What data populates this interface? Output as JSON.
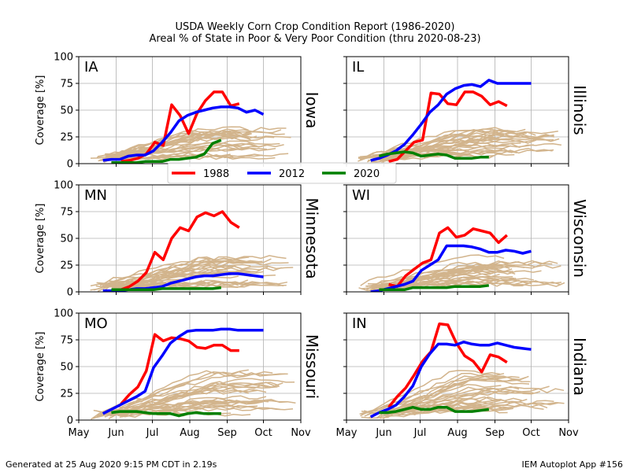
{
  "header": {
    "title_line1": "USDA Weekly Corn Crop Condition Report (1986-2020)",
    "title_line2": "Areal % of State in Poor & Very Poor Condition (thru 2020-08-23)"
  },
  "footer": {
    "left": "Generated at 25 Aug 2020 9:15 PM CDT in 2.19s",
    "right": "IEM Autoplot App #156"
  },
  "colors": {
    "1988": "#ff0000",
    "2012": "#0000ff",
    "2020": "#008000",
    "other_years": "#d2b48c",
    "grid": "#b0b0b0"
  },
  "chart_data": {
    "type": "line",
    "x_ticks": [
      "May",
      "Jun",
      "Jul",
      "Aug",
      "Sep",
      "Oct",
      "Nov"
    ],
    "xlim": [
      "May 1",
      "Nov 1"
    ],
    "y_ticks": [
      "0",
      "25",
      "50",
      "75",
      "100"
    ],
    "ylim": [
      0,
      100
    ],
    "ylabel": "Coverage [%]",
    "grid": true,
    "legend": {
      "placement": "center",
      "entries": [
        "1988",
        "2012",
        "2020"
      ]
    },
    "panels": [
      {
        "abbr": "IA",
        "state": "Iowa",
        "series": [
          {
            "name": "1988",
            "dates": [
              "2024-06-05",
              "2024-06-12",
              "2024-06-19",
              "2024-06-26",
              "2024-07-03",
              "2024-07-10",
              "2024-07-17",
              "2024-07-24",
              "2024-07-31",
              "2024-08-07",
              "2024-08-14",
              "2024-08-21",
              "2024-08-28",
              "2024-09-04",
              "2024-09-11"
            ],
            "values": [
              2,
              3,
              5,
              9,
              20,
              17,
              55,
              45,
              28,
              47,
              59,
              67,
              67,
              54,
              56
            ]
          },
          {
            "name": "2012",
            "dates": [
              "2024-05-21",
              "2024-05-28",
              "2024-06-04",
              "2024-06-11",
              "2024-06-18",
              "2024-06-25",
              "2024-07-02",
              "2024-07-09",
              "2024-07-16",
              "2024-07-23",
              "2024-07-30",
              "2024-08-06",
              "2024-08-13",
              "2024-08-20",
              "2024-08-27",
              "2024-09-03",
              "2024-09-10",
              "2024-09-17",
              "2024-09-24",
              "2024-10-01"
            ],
            "values": [
              3,
              4,
              4,
              7,
              8,
              8,
              12,
              20,
              29,
              40,
              45,
              48,
              50,
              52,
              53,
              53,
              52,
              48,
              50,
              46
            ]
          },
          {
            "name": "2020",
            "dates": [
              "2024-05-28",
              "2024-06-04",
              "2024-06-11",
              "2024-06-18",
              "2024-06-25",
              "2024-07-02",
              "2024-07-09",
              "2024-07-16",
              "2024-07-23",
              "2024-07-30",
              "2024-08-06",
              "2024-08-13",
              "2024-08-20",
              "2024-08-27"
            ],
            "values": [
              1,
              1,
              1,
              1,
              2,
              2,
              2,
              4,
              4,
              5,
              6,
              9,
              19,
              22
            ]
          }
        ]
      },
      {
        "abbr": "IL",
        "state": "Illinois",
        "series": [
          {
            "name": "1988",
            "dates": [
              "2024-06-05",
              "2024-06-12",
              "2024-06-19",
              "2024-06-26",
              "2024-07-03",
              "2024-07-10",
              "2024-07-17",
              "2024-07-24",
              "2024-07-31",
              "2024-08-07",
              "2024-08-14",
              "2024-08-21",
              "2024-08-28",
              "2024-09-04",
              "2024-09-11"
            ],
            "values": [
              2,
              4,
              12,
              20,
              22,
              66,
              65,
              56,
              55,
              67,
              67,
              63,
              55,
              58,
              54
            ]
          },
          {
            "name": "2012",
            "dates": [
              "2024-05-21",
              "2024-05-28",
              "2024-06-04",
              "2024-06-11",
              "2024-06-18",
              "2024-06-25",
              "2024-07-02",
              "2024-07-09",
              "2024-07-16",
              "2024-07-23",
              "2024-07-30",
              "2024-08-06",
              "2024-08-13",
              "2024-08-20",
              "2024-08-27",
              "2024-09-03",
              "2024-09-10",
              "2024-09-17",
              "2024-09-24",
              "2024-10-01"
            ],
            "values": [
              3,
              5,
              8,
              12,
              18,
              27,
              37,
              48,
              55,
              65,
              70,
              73,
              74,
              72,
              78,
              75,
              75,
              75,
              75,
              75
            ]
          },
          {
            "name": "2020",
            "dates": [
              "2024-05-28",
              "2024-06-04",
              "2024-06-11",
              "2024-06-18",
              "2024-06-25",
              "2024-07-02",
              "2024-07-09",
              "2024-07-16",
              "2024-07-23",
              "2024-07-30",
              "2024-08-06",
              "2024-08-13",
              "2024-08-20",
              "2024-08-27"
            ],
            "values": [
              7,
              9,
              10,
              11,
              10,
              7,
              8,
              9,
              8,
              5,
              5,
              5,
              6,
              6
            ]
          }
        ]
      },
      {
        "abbr": "MN",
        "state": "Minnesota",
        "series": [
          {
            "name": "1988",
            "dates": [
              "2024-06-05",
              "2024-06-12",
              "2024-06-19",
              "2024-06-26",
              "2024-07-03",
              "2024-07-10",
              "2024-07-17",
              "2024-07-24",
              "2024-07-31",
              "2024-08-07",
              "2024-08-14",
              "2024-08-21",
              "2024-08-28",
              "2024-09-04",
              "2024-09-11"
            ],
            "values": [
              2,
              5,
              10,
              18,
              37,
              30,
              50,
              60,
              57,
              70,
              74,
              71,
              75,
              65,
              60
            ]
          },
          {
            "name": "2012",
            "dates": [
              "2024-05-21",
              "2024-05-28",
              "2024-06-04",
              "2024-06-11",
              "2024-06-18",
              "2024-06-25",
              "2024-07-02",
              "2024-07-09",
              "2024-07-16",
              "2024-07-23",
              "2024-07-30",
              "2024-08-06",
              "2024-08-13",
              "2024-08-20",
              "2024-08-27",
              "2024-09-03",
              "2024-09-10",
              "2024-09-17",
              "2024-09-24",
              "2024-10-01"
            ],
            "values": [
              1,
              1,
              1,
              2,
              3,
              3,
              4,
              5,
              8,
              10,
              12,
              14,
              15,
              15,
              16,
              17,
              17,
              16,
              15,
              14
            ]
          },
          {
            "name": "2020",
            "dates": [
              "2024-05-28",
              "2024-06-04",
              "2024-06-11",
              "2024-06-18",
              "2024-06-25",
              "2024-07-02",
              "2024-07-09",
              "2024-07-16",
              "2024-07-23",
              "2024-07-30",
              "2024-08-06",
              "2024-08-13",
              "2024-08-20",
              "2024-08-27"
            ],
            "values": [
              2,
              2,
              2,
              2,
              2,
              2,
              3,
              3,
              3,
              3,
              3,
              3,
              3,
              4
            ]
          }
        ]
      },
      {
        "abbr": "WI",
        "state": "Wisconsin",
        "series": [
          {
            "name": "1988",
            "dates": [
              "2024-06-05",
              "2024-06-12",
              "2024-06-19",
              "2024-06-26",
              "2024-07-03",
              "2024-07-10",
              "2024-07-17",
              "2024-07-24",
              "2024-07-31",
              "2024-08-07",
              "2024-08-14",
              "2024-08-21",
              "2024-08-28",
              "2024-09-04",
              "2024-09-11"
            ],
            "values": [
              7,
              5,
              15,
              21,
              27,
              30,
              55,
              60,
              51,
              53,
              59,
              57,
              55,
              46,
              53
            ]
          },
          {
            "name": "2012",
            "dates": [
              "2024-05-21",
              "2024-05-28",
              "2024-06-04",
              "2024-06-11",
              "2024-06-18",
              "2024-06-25",
              "2024-07-02",
              "2024-07-09",
              "2024-07-16",
              "2024-07-23",
              "2024-07-30",
              "2024-08-06",
              "2024-08-13",
              "2024-08-20",
              "2024-08-27",
              "2024-09-03",
              "2024-09-10",
              "2024-09-17",
              "2024-09-24",
              "2024-10-01"
            ],
            "values": [
              0,
              1,
              3,
              5,
              7,
              10,
              20,
              25,
              30,
              43,
              43,
              43,
              42,
              40,
              37,
              37,
              39,
              38,
              36,
              38
            ]
          },
          {
            "name": "2020",
            "dates": [
              "2024-05-28",
              "2024-06-04",
              "2024-06-11",
              "2024-06-18",
              "2024-06-25",
              "2024-07-02",
              "2024-07-09",
              "2024-07-16",
              "2024-07-23",
              "2024-07-30",
              "2024-08-06",
              "2024-08-13",
              "2024-08-20",
              "2024-08-27"
            ],
            "values": [
              2,
              2,
              2,
              2,
              4,
              4,
              4,
              4,
              4,
              5,
              5,
              5,
              5,
              6
            ]
          }
        ]
      },
      {
        "abbr": "MO",
        "state": "Missouri",
        "series": [
          {
            "name": "1988",
            "dates": [
              "2024-06-05",
              "2024-06-12",
              "2024-06-19",
              "2024-06-26",
              "2024-07-03",
              "2024-07-10",
              "2024-07-17",
              "2024-07-24",
              "2024-07-31",
              "2024-08-07",
              "2024-08-14",
              "2024-08-21",
              "2024-08-28",
              "2024-09-04",
              "2024-09-11"
            ],
            "values": [
              15,
              24,
              31,
              46,
              80,
              74,
              77,
              76,
              74,
              68,
              67,
              70,
              70,
              65,
              65
            ]
          },
          {
            "name": "2012",
            "dates": [
              "2024-05-21",
              "2024-05-28",
              "2024-06-04",
              "2024-06-11",
              "2024-06-18",
              "2024-06-25",
              "2024-07-02",
              "2024-07-09",
              "2024-07-16",
              "2024-07-23",
              "2024-07-30",
              "2024-08-06",
              "2024-08-13",
              "2024-08-20",
              "2024-08-27",
              "2024-09-03",
              "2024-09-10",
              "2024-09-17",
              "2024-09-24",
              "2024-10-01"
            ],
            "values": [
              6,
              10,
              14,
              18,
              22,
              27,
              49,
              60,
              72,
              78,
              83,
              84,
              84,
              84,
              85,
              85,
              84,
              84,
              84,
              84
            ]
          },
          {
            "name": "2020",
            "dates": [
              "2024-05-28",
              "2024-06-04",
              "2024-06-11",
              "2024-06-18",
              "2024-06-25",
              "2024-07-02",
              "2024-07-09",
              "2024-07-16",
              "2024-07-23",
              "2024-07-30",
              "2024-08-06",
              "2024-08-13",
              "2024-08-20",
              "2024-08-27"
            ],
            "values": [
              7,
              8,
              8,
              8,
              7,
              6,
              6,
              6,
              4,
              6,
              7,
              6,
              6,
              6
            ]
          }
        ]
      },
      {
        "abbr": "IN",
        "state": "Indiana",
        "series": [
          {
            "name": "1988",
            "dates": [
              "2024-06-05",
              "2024-06-12",
              "2024-06-19",
              "2024-06-26",
              "2024-07-03",
              "2024-07-10",
              "2024-07-17",
              "2024-07-24",
              "2024-07-31",
              "2024-08-07",
              "2024-08-14",
              "2024-08-21",
              "2024-08-28",
              "2024-09-04",
              "2024-09-11"
            ],
            "values": [
              12,
              22,
              30,
              42,
              55,
              64,
              90,
              89,
              72,
              60,
              55,
              45,
              61,
              59,
              54
            ]
          },
          {
            "name": "2012",
            "dates": [
              "2024-05-21",
              "2024-05-28",
              "2024-06-04",
              "2024-06-11",
              "2024-06-18",
              "2024-06-25",
              "2024-07-02",
              "2024-07-09",
              "2024-07-16",
              "2024-07-23",
              "2024-07-30",
              "2024-08-06",
              "2024-08-13",
              "2024-08-20",
              "2024-08-27",
              "2024-09-03",
              "2024-09-10",
              "2024-09-17",
              "2024-09-24",
              "2024-10-01"
            ],
            "values": [
              3,
              7,
              10,
              14,
              22,
              32,
              50,
              62,
              71,
              71,
              70,
              73,
              71,
              70,
              70,
              72,
              70,
              68,
              67,
              66
            ]
          },
          {
            "name": "2020",
            "dates": [
              "2024-05-28",
              "2024-06-04",
              "2024-06-11",
              "2024-06-18",
              "2024-06-25",
              "2024-07-02",
              "2024-07-09",
              "2024-07-16",
              "2024-07-23",
              "2024-07-30",
              "2024-08-06",
              "2024-08-13",
              "2024-08-20",
              "2024-08-27"
            ],
            "values": [
              7,
              7,
              8,
              10,
              12,
              10,
              10,
              12,
              12,
              8,
              8,
              8,
              9,
              10
            ]
          }
        ]
      }
    ]
  }
}
